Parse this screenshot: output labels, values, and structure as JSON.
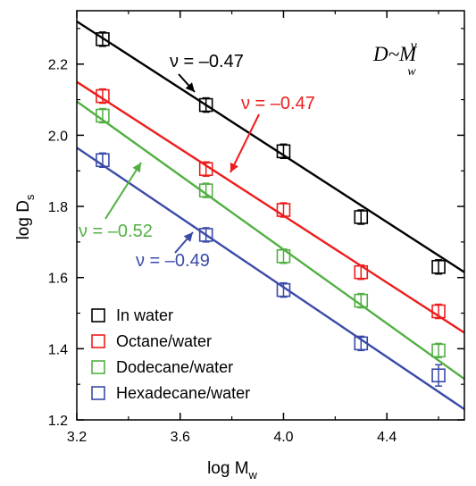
{
  "chart_data": {
    "type": "scatter",
    "xlabel_main": "log M",
    "xlabel_sub": "w",
    "ylabel_main": "log D",
    "ylabel_sub": "s",
    "xlim": [
      3.2,
      4.7
    ],
    "ylim": [
      1.2,
      2.35
    ],
    "x_ticks": [
      "3.2",
      "3.6",
      "4.0",
      "4.4"
    ],
    "y_ticks": [
      "1.2",
      "1.4",
      "1.6",
      "1.8",
      "2.0",
      "2.2"
    ],
    "x": [
      3.3,
      3.7,
      4.0,
      4.3,
      4.6
    ],
    "formula": {
      "main": "D~M",
      "sub": "w",
      "sup": "ν"
    },
    "legend_position": "bottom-left",
    "series": [
      {
        "name": "In water",
        "color": "#000000",
        "values": [
          2.27,
          2.085,
          1.955,
          1.77,
          1.63
        ],
        "errors": [
          0.02,
          0.02,
          0.02,
          0.02,
          0.02
        ],
        "fit": [
          [
            3.2,
            2.32
          ],
          [
            4.7,
            1.615
          ]
        ],
        "annotation": {
          "text": "ν = –0.47",
          "x": 3.7,
          "y": 2.085
        }
      },
      {
        "name": "Octane/water",
        "color": "#ee1c1c",
        "values": [
          2.11,
          1.905,
          1.79,
          1.615,
          1.505
        ],
        "errors": [
          0.02,
          0.02,
          0.02,
          0.02,
          0.02
        ],
        "fit": [
          [
            3.2,
            2.15
          ],
          [
            4.7,
            1.445
          ]
        ],
        "annotation": {
          "text": "ν = –0.47",
          "x": 3.85,
          "y": 1.895
        }
      },
      {
        "name": "Dodecane/water",
        "color": "#52b043",
        "values": [
          2.055,
          1.845,
          1.66,
          1.535,
          1.395
        ],
        "errors": [
          0.02,
          0.02,
          0.02,
          0.02,
          0.02
        ],
        "fit": [
          [
            3.2,
            2.095
          ],
          [
            4.7,
            1.315
          ]
        ],
        "annotation": {
          "text": "ν = –0.52",
          "x": 3.45,
          "y": 1.95
        }
      },
      {
        "name": "Hexadecane/water",
        "color": "#3a4aa8",
        "values": [
          1.93,
          1.72,
          1.565,
          1.415,
          1.325
        ],
        "errors": [
          0.02,
          0.02,
          0.02,
          0.02,
          0.03
        ],
        "fit": [
          [
            3.2,
            1.965
          ],
          [
            4.7,
            1.23
          ]
        ],
        "annotation": {
          "text": "ν = –0.49",
          "x": 3.64,
          "y": 1.715
        }
      }
    ]
  }
}
